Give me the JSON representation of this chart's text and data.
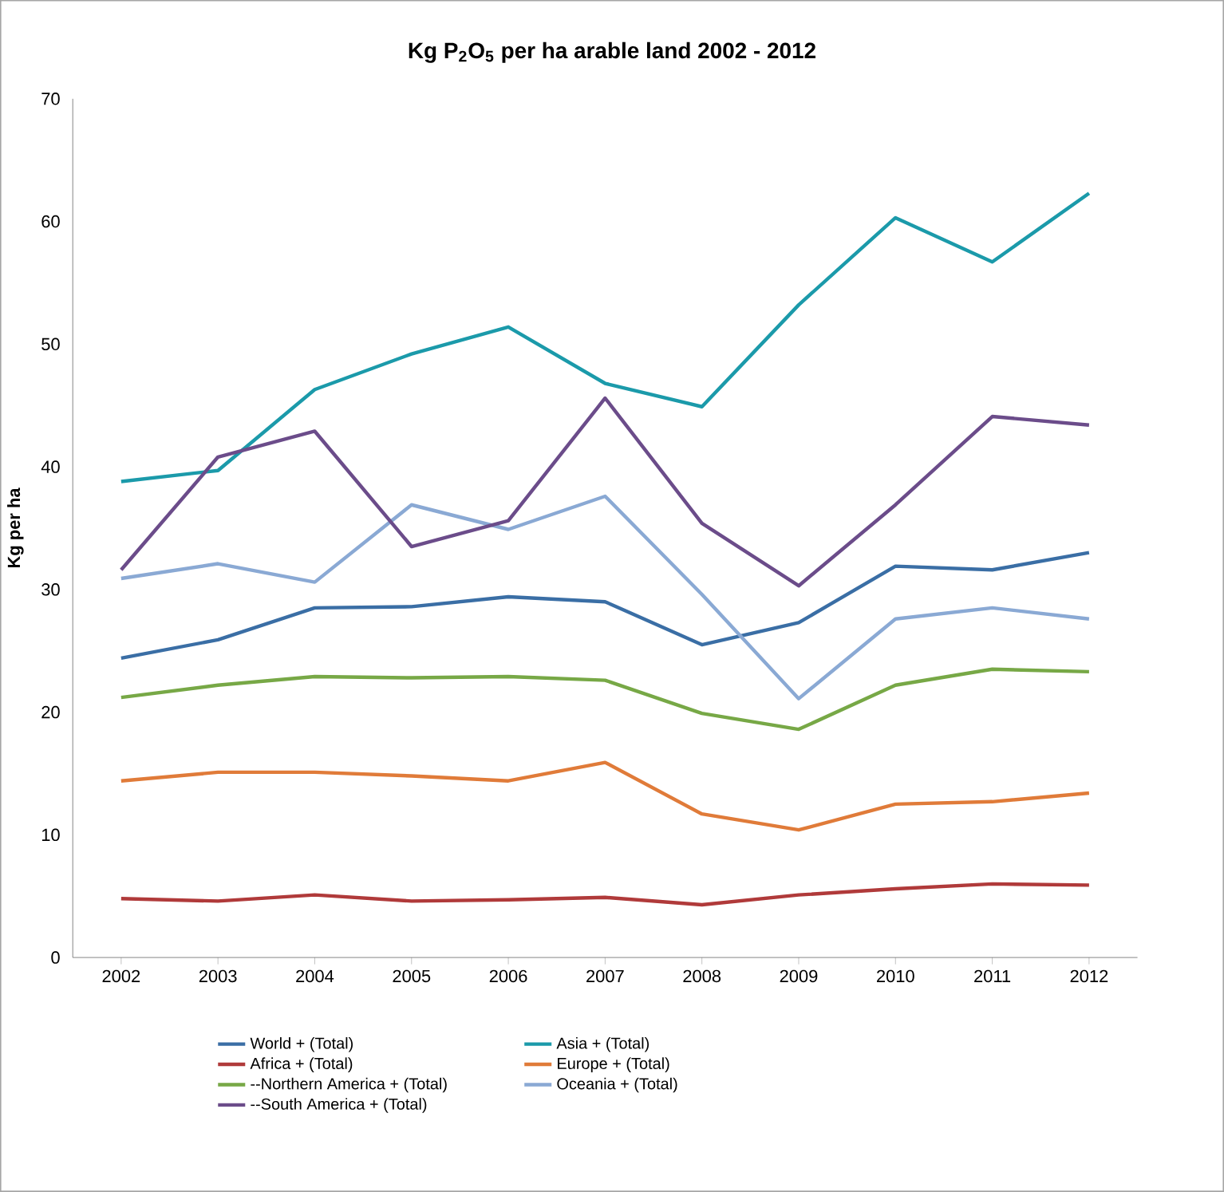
{
  "chart_data": {
    "type": "line",
    "title": "Kg P$_{2}$O$_{5}$ per ha arable land 2002 - 2012",
    "ylabel": "Kg per ha",
    "categories": [
      "2002",
      "2003",
      "2004",
      "2005",
      "2006",
      "2007",
      "2008",
      "2009",
      "2010",
      "2011",
      "2012"
    ],
    "series": [
      {
        "name": "World + (Total)",
        "color": "#3a6ea5",
        "values": [
          24.4,
          25.9,
          28.5,
          28.6,
          29.4,
          29.0,
          25.5,
          27.3,
          31.9,
          31.6,
          33.0
        ]
      },
      {
        "name": "Asia + (Total)",
        "color": "#1b9aaa",
        "values": [
          38.8,
          39.7,
          46.3,
          49.2,
          51.4,
          46.8,
          44.9,
          53.2,
          60.3,
          56.7,
          62.3
        ]
      },
      {
        "name": "Africa + (Total)",
        "color": "#b03a3a",
        "values": [
          4.8,
          4.6,
          5.1,
          4.6,
          4.7,
          4.9,
          4.3,
          5.1,
          5.6,
          6.0,
          5.9
        ]
      },
      {
        "name": "Europe + (Total)",
        "color": "#e07b39",
        "values": [
          14.4,
          15.1,
          15.1,
          14.8,
          14.4,
          15.9,
          11.7,
          10.4,
          12.5,
          12.7,
          13.4
        ]
      },
      {
        "name": "--Northern America + (Total)",
        "color": "#77a846",
        "values": [
          21.2,
          22.2,
          22.9,
          22.8,
          22.9,
          22.6,
          19.9,
          18.6,
          22.2,
          23.5,
          23.3
        ]
      },
      {
        "name": "Oceania + (Total)",
        "color": "#8aa9d4",
        "values": [
          30.9,
          32.1,
          30.6,
          36.9,
          34.9,
          37.6,
          29.6,
          21.1,
          27.6,
          28.5,
          27.6
        ]
      },
      {
        "name": "--South America + (Total)",
        "color": "#6b4c8a",
        "values": [
          31.6,
          40.8,
          42.9,
          33.5,
          35.6,
          45.6,
          35.4,
          30.3,
          36.9,
          44.1,
          43.4
        ]
      }
    ],
    "ylim": [
      0,
      70
    ],
    "yticks": [
      0,
      10,
      20,
      30,
      40,
      50,
      60,
      70
    ],
    "grid": false,
    "legend": "bottom",
    "marker": "none",
    "line_style": "solid"
  }
}
